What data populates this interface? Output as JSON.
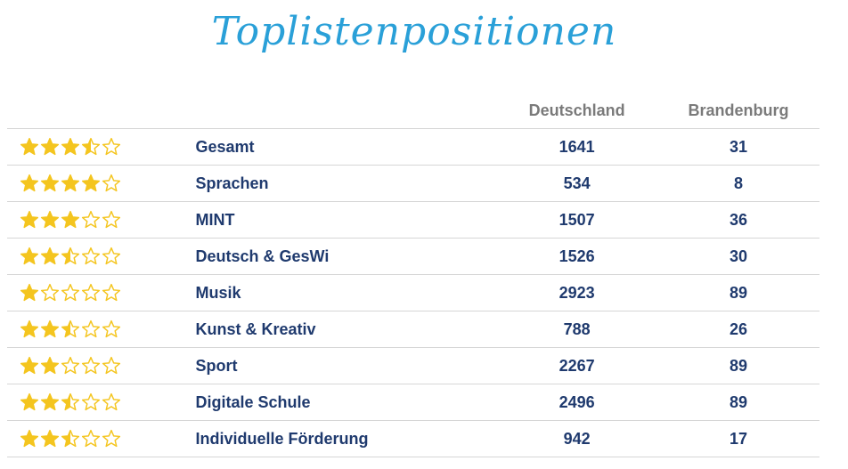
{
  "title": "Toplistenpositionen",
  "header": {
    "col1": "",
    "col2": "",
    "col3": "Deutschland",
    "col4": "Brandenburg"
  },
  "colors": {
    "star": "#f4c51f",
    "text": "#1f3a6e",
    "header": "#7a7a7a",
    "title": "#2aa0d8"
  },
  "rows": [
    {
      "rating": 3.5,
      "subject": "Gesamt",
      "de": "1641",
      "bb": "31"
    },
    {
      "rating": 4,
      "subject": "Sprachen",
      "de": "534",
      "bb": "8"
    },
    {
      "rating": 3,
      "subject": "MINT",
      "de": "1507",
      "bb": "36"
    },
    {
      "rating": 2.5,
      "subject": "Deutsch & GesWi",
      "de": "1526",
      "bb": "30"
    },
    {
      "rating": 1,
      "subject": "Musik",
      "de": "2923",
      "bb": "89"
    },
    {
      "rating": 2.5,
      "subject": "Kunst & Kreativ",
      "de": "788",
      "bb": "26"
    },
    {
      "rating": 2,
      "subject": "Sport",
      "de": "2267",
      "bb": "89"
    },
    {
      "rating": 2.5,
      "subject": "Digitale Schule",
      "de": "2496",
      "bb": "89"
    },
    {
      "rating": 2.5,
      "subject": "Individuelle Förderung",
      "de": "942",
      "bb": "17"
    }
  ]
}
